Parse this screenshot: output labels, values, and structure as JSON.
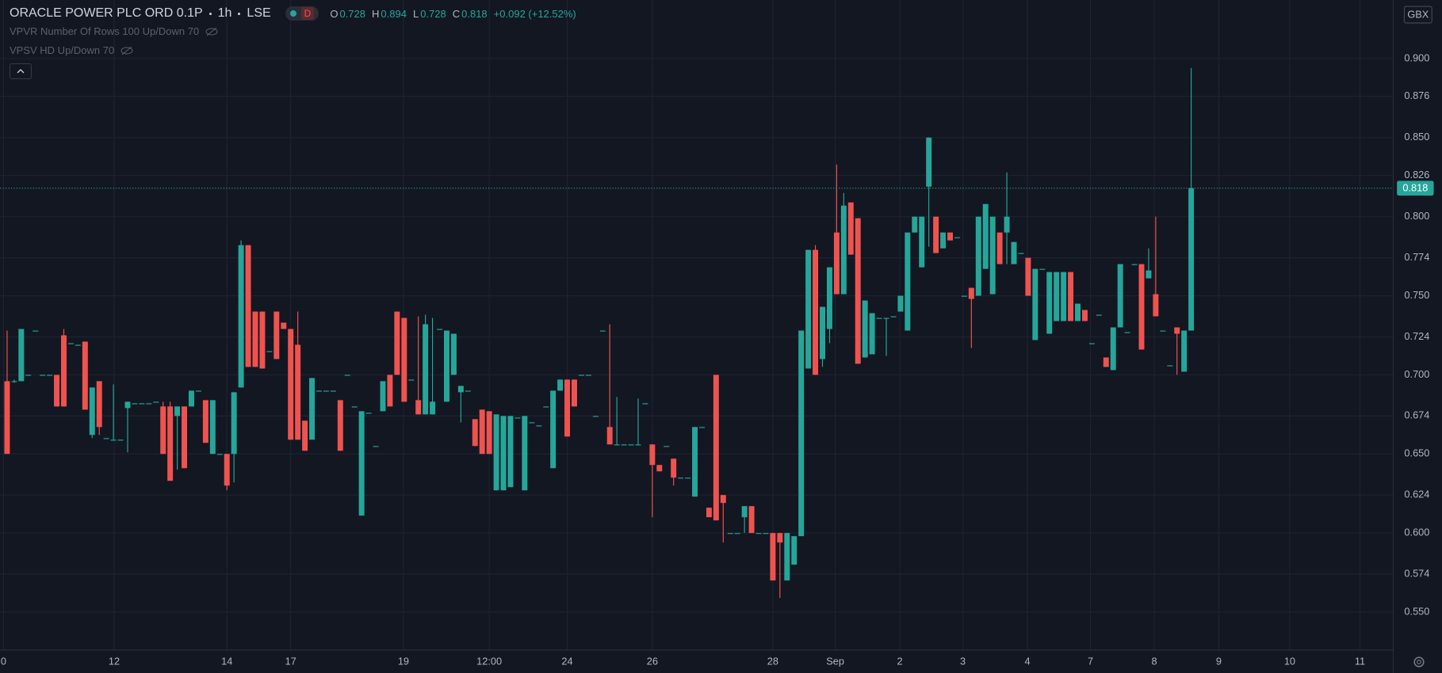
{
  "header": {
    "symbol": "ORACLE POWER PLC ORD 0.1P",
    "interval": "1h",
    "exchange": "LSE",
    "mode": "D",
    "o_label": "O",
    "h_label": "H",
    "l_label": "L",
    "c_label": "C",
    "change": "+0.092 (+12.52%)"
  },
  "indicators": [
    "VPVR Number Of Rows 100 Up/Down 70",
    "VPSV HD Up/Down 70"
  ],
  "currency": "GBX",
  "chart_data": {
    "type": "candlestick",
    "up_color": "#26a69a",
    "down_color": "#ef5350",
    "grid": true,
    "ylim": [
      0.526,
      0.937
    ],
    "yticks": [
      {
        "value": 0.55,
        "label": "0.550"
      },
      0.574,
      {
        "value": 0.6,
        "label": "0.600"
      },
      0.624,
      {
        "value": 0.65,
        "label": "0.650"
      },
      0.674,
      {
        "value": 0.7,
        "label": "0.700"
      },
      0.724,
      {
        "value": 0.75,
        "label": "0.750"
      },
      0.774,
      {
        "value": 0.8,
        "label": "0.800"
      },
      0.826,
      {
        "value": 0.85,
        "label": "0.850"
      },
      0.876,
      {
        "value": 0.9,
        "label": "0.900"
      }
    ],
    "xlim": [
      -1,
      195.5
    ],
    "xticks": [
      {
        "value": -0.5,
        "label": "0"
      },
      {
        "value": 15.1,
        "label": "12"
      },
      {
        "value": 31,
        "label": "14"
      },
      {
        "value": 40,
        "label": "17"
      },
      {
        "value": 55.9,
        "label": "19"
      },
      {
        "value": 68,
        "label": "12:00"
      },
      {
        "value": 79,
        "label": "24"
      },
      {
        "value": 91,
        "label": "26"
      },
      {
        "value": 108,
        "label": "28"
      },
      {
        "value": 116.8,
        "label": "Sep"
      },
      {
        "value": 125.9,
        "label": "2"
      },
      {
        "value": 134.8,
        "label": "3"
      },
      {
        "value": 143.9,
        "label": "4"
      },
      {
        "value": 152.8,
        "label": "7"
      },
      {
        "value": 161.8,
        "label": "8"
      },
      {
        "value": 170.9,
        "label": "9"
      },
      {
        "value": 180.9,
        "label": "10"
      },
      {
        "value": 190.8,
        "label": "11"
      }
    ],
    "ohlc": [
      [
        0.696,
        0.728,
        0.65,
        0.65
      ],
      [
        0.696,
        0.697,
        0.695,
        0.696
      ],
      [
        0.696,
        0.729,
        0.696,
        0.729
      ],
      [
        0.7,
        0.7,
        0.7,
        0.7
      ],
      [
        0.728,
        0.728,
        0.728,
        0.728
      ],
      [
        0.7,
        0.7,
        0.7,
        0.7
      ],
      [
        0.7,
        0.7,
        0.7,
        0.7
      ],
      [
        0.7,
        0.7,
        0.68,
        0.68
      ],
      [
        0.725,
        0.729,
        0.68,
        0.68
      ],
      [
        0.72,
        0.72,
        0.72,
        0.72
      ],
      [
        0.719,
        0.719,
        0.719,
        0.719
      ],
      [
        0.721,
        0.721,
        0.678,
        0.678
      ],
      [
        0.662,
        0.692,
        0.66,
        0.692
      ],
      [
        0.696,
        0.696,
        0.662,
        0.667
      ],
      [
        0.66,
        0.66,
        0.66,
        0.66
      ],
      [
        0.659,
        0.694,
        0.659,
        0.659
      ],
      [
        0.659,
        0.659,
        0.659,
        0.659
      ],
      [
        0.679,
        0.683,
        0.651,
        0.683
      ],
      [
        0.682,
        0.682,
        0.682,
        0.682
      ],
      [
        0.682,
        0.682,
        0.682,
        0.682
      ],
      [
        0.682,
        0.682,
        0.682,
        0.682
      ],
      [
        0.683,
        0.683,
        0.683,
        0.683
      ],
      [
        0.68,
        0.683,
        0.65,
        0.65
      ],
      [
        0.68,
        0.683,
        0.633,
        0.633
      ],
      [
        0.674,
        0.68,
        0.64,
        0.68
      ],
      [
        0.68,
        0.68,
        0.641,
        0.641
      ],
      [
        0.68,
        0.69,
        0.68,
        0.69
      ],
      [
        0.69,
        0.69,
        0.69,
        0.69
      ],
      [
        0.684,
        0.684,
        0.657,
        0.657
      ],
      [
        0.65,
        0.684,
        0.65,
        0.684
      ],
      [
        0.65,
        0.65,
        0.65,
        0.65
      ],
      [
        0.65,
        0.65,
        0.627,
        0.63
      ],
      [
        0.65,
        0.689,
        0.632,
        0.689
      ],
      [
        0.692,
        0.785,
        0.692,
        0.782
      ],
      [
        0.782,
        0.782,
        0.705,
        0.705
      ],
      [
        0.74,
        0.74,
        0.705,
        0.705
      ],
      [
        0.74,
        0.74,
        0.704,
        0.704
      ],
      [
        0.715,
        0.715,
        0.715,
        0.715
      ],
      [
        0.74,
        0.74,
        0.71,
        0.71
      ],
      [
        0.733,
        0.733,
        0.729,
        0.729
      ],
      [
        0.729,
        0.729,
        0.659,
        0.659
      ],
      [
        0.719,
        0.74,
        0.659,
        0.659
      ],
      [
        0.671,
        0.671,
        0.652,
        0.652
      ],
      [
        0.659,
        0.698,
        0.659,
        0.698
      ],
      [
        0.69,
        0.69,
        0.69,
        0.69
      ],
      [
        0.69,
        0.69,
        0.69,
        0.69
      ],
      [
        0.69,
        0.69,
        0.69,
        0.69
      ],
      [
        0.684,
        0.684,
        0.652,
        0.652
      ],
      [
        0.7,
        0.7,
        0.7,
        0.7
      ],
      [
        0.68,
        0.68,
        0.68,
        0.68
      ],
      [
        0.611,
        0.677,
        0.611,
        0.677
      ],
      [
        0.676,
        0.676,
        0.676,
        0.676
      ],
      [
        0.655,
        0.655,
        0.655,
        0.655
      ],
      [
        0.677,
        0.696,
        0.677,
        0.696
      ],
      [
        0.7,
        0.7,
        0.68,
        0.68
      ],
      [
        0.74,
        0.74,
        0.7,
        0.7
      ],
      [
        0.736,
        0.736,
        0.683,
        0.683
      ],
      [
        0.697,
        0.697,
        0.697,
        0.697
      ],
      [
        0.684,
        0.737,
        0.675,
        0.675
      ],
      [
        0.675,
        0.738,
        0.675,
        0.732
      ],
      [
        0.675,
        0.736,
        0.675,
        0.683
      ],
      [
        0.729,
        0.729,
        0.729,
        0.729
      ],
      [
        0.683,
        0.728,
        0.683,
        0.728
      ],
      [
        0.7,
        0.726,
        0.7,
        0.726
      ],
      [
        0.689,
        0.693,
        0.67,
        0.693
      ],
      [
        0.69,
        0.69,
        0.69,
        0.69
      ],
      [
        0.672,
        0.672,
        0.655,
        0.655
      ],
      [
        0.678,
        0.678,
        0.65,
        0.65
      ],
      [
        0.677,
        0.677,
        0.65,
        0.65
      ],
      [
        0.627,
        0.675,
        0.627,
        0.675
      ],
      [
        0.627,
        0.674,
        0.627,
        0.674
      ],
      [
        0.629,
        0.674,
        0.629,
        0.674
      ],
      [
        0.673,
        0.673,
        0.673,
        0.673
      ],
      [
        0.627,
        0.674,
        0.627,
        0.674
      ],
      [
        0.67,
        0.67,
        0.67,
        0.67
      ],
      [
        0.668,
        0.668,
        0.668,
        0.668
      ],
      [
        0.68,
        0.68,
        0.68,
        0.68
      ],
      [
        0.641,
        0.69,
        0.641,
        0.69
      ],
      [
        0.69,
        0.697,
        0.69,
        0.697
      ],
      [
        0.697,
        0.697,
        0.661,
        0.661
      ],
      [
        0.697,
        0.697,
        0.68,
        0.68
      ],
      [
        0.7,
        0.7,
        0.7,
        0.7
      ],
      [
        0.7,
        0.7,
        0.7,
        0.7
      ],
      [
        0.674,
        0.674,
        0.674,
        0.674
      ],
      [
        0.728,
        0.728,
        0.728,
        0.728
      ],
      [
        0.667,
        0.732,
        0.656,
        0.656
      ],
      [
        0.656,
        0.686,
        0.656,
        0.656
      ],
      [
        0.656,
        0.656,
        0.656,
        0.656
      ],
      [
        0.656,
        0.656,
        0.656,
        0.656
      ],
      [
        0.656,
        0.685,
        0.656,
        0.656
      ],
      [
        0.682,
        0.682,
        0.682,
        0.682
      ],
      [
        0.656,
        0.656,
        0.61,
        0.643
      ],
      [
        0.643,
        0.643,
        0.639,
        0.639
      ],
      [
        0.655,
        0.655,
        0.655,
        0.655
      ],
      [
        0.647,
        0.647,
        0.63,
        0.635
      ],
      [
        0.635,
        0.635,
        0.635,
        0.635
      ],
      [
        0.635,
        0.635,
        0.635,
        0.635
      ],
      [
        0.623,
        0.667,
        0.623,
        0.667
      ],
      [
        0.667,
        0.667,
        0.667,
        0.667
      ],
      [
        0.616,
        0.616,
        0.61,
        0.61
      ],
      [
        0.7,
        0.7,
        0.608,
        0.608
      ],
      [
        0.624,
        0.624,
        0.594,
        0.619
      ],
      [
        0.6,
        0.6,
        0.6,
        0.6
      ],
      [
        0.6,
        0.6,
        0.6,
        0.6
      ],
      [
        0.61,
        0.617,
        0.6,
        0.617
      ],
      [
        0.617,
        0.617,
        0.6,
        0.6
      ],
      [
        0.6,
        0.6,
        0.6,
        0.6
      ],
      [
        0.6,
        0.6,
        0.6,
        0.6
      ],
      [
        0.6,
        0.6,
        0.57,
        0.57
      ],
      [
        0.6,
        0.6,
        0.559,
        0.594
      ],
      [
        0.57,
        0.6,
        0.57,
        0.6
      ],
      [
        0.58,
        0.598,
        0.58,
        0.598
      ],
      [
        0.598,
        0.728,
        0.598,
        0.728
      ],
      [
        0.704,
        0.779,
        0.704,
        0.779
      ],
      [
        0.779,
        0.782,
        0.7,
        0.7
      ],
      [
        0.71,
        0.743,
        0.705,
        0.743
      ],
      [
        0.729,
        0.768,
        0.72,
        0.768
      ],
      [
        0.79,
        0.833,
        0.751,
        0.751
      ],
      [
        0.751,
        0.815,
        0.751,
        0.807
      ],
      [
        0.809,
        0.809,
        0.776,
        0.776
      ],
      [
        0.799,
        0.799,
        0.707,
        0.707
      ],
      [
        0.711,
        0.747,
        0.711,
        0.747
      ],
      [
        0.713,
        0.739,
        0.713,
        0.739
      ],
      [
        0.736,
        0.736,
        0.736,
        0.736
      ],
      [
        0.736,
        0.736,
        0.712,
        0.736
      ],
      [
        0.737,
        0.737,
        0.737,
        0.737
      ],
      [
        0.74,
        0.75,
        0.74,
        0.75
      ],
      [
        0.728,
        0.79,
        0.728,
        0.79
      ],
      [
        0.79,
        0.8,
        0.79,
        0.8
      ],
      [
        0.768,
        0.8,
        0.768,
        0.8
      ],
      [
        0.819,
        0.85,
        0.781,
        0.85
      ],
      [
        0.8,
        0.8,
        0.777,
        0.777
      ],
      [
        0.78,
        0.79,
        0.78,
        0.79
      ],
      [
        0.79,
        0.79,
        0.785,
        0.785
      ],
      [
        0.787,
        0.787,
        0.787,
        0.787
      ],
      [
        0.75,
        0.75,
        0.75,
        0.75
      ],
      [
        0.755,
        0.755,
        0.717,
        0.748
      ],
      [
        0.75,
        0.8,
        0.75,
        0.8
      ],
      [
        0.767,
        0.808,
        0.767,
        0.808
      ],
      [
        0.751,
        0.8,
        0.751,
        0.8
      ],
      [
        0.79,
        0.79,
        0.77,
        0.77
      ],
      [
        0.79,
        0.828,
        0.77,
        0.8
      ],
      [
        0.77,
        0.784,
        0.77,
        0.784
      ],
      [
        0.777,
        0.777,
        0.777,
        0.777
      ],
      [
        0.774,
        0.774,
        0.75,
        0.75
      ],
      [
        0.722,
        0.767,
        0.722,
        0.767
      ],
      [
        0.767,
        0.767,
        0.767,
        0.767
      ],
      [
        0.726,
        0.765,
        0.726,
        0.765
      ],
      [
        0.734,
        0.765,
        0.734,
        0.765
      ],
      [
        0.734,
        0.765,
        0.734,
        0.765
      ],
      [
        0.765,
        0.765,
        0.734,
        0.734
      ],
      [
        0.734,
        0.745,
        0.734,
        0.745
      ],
      [
        0.741,
        0.741,
        0.734,
        0.734
      ],
      [
        0.72,
        0.72,
        0.72,
        0.72
      ],
      [
        0.738,
        0.738,
        0.738,
        0.738
      ],
      [
        0.711,
        0.711,
        0.705,
        0.705
      ],
      [
        0.703,
        0.73,
        0.703,
        0.73
      ],
      [
        0.73,
        0.77,
        0.73,
        0.77
      ],
      [
        0.727,
        0.727,
        0.727,
        0.727
      ],
      [
        0.77,
        0.77,
        0.77,
        0.77
      ],
      [
        0.77,
        0.77,
        0.716,
        0.716
      ],
      [
        0.761,
        0.78,
        0.761,
        0.766
      ],
      [
        0.751,
        0.8,
        0.737,
        0.737
      ],
      [
        0.728,
        0.728,
        0.728,
        0.728
      ],
      [
        0.706,
        0.706,
        0.706,
        0.706
      ],
      [
        0.73,
        0.73,
        0.7,
        0.726
      ],
      [
        0.702,
        0.728,
        0.702,
        0.728
      ],
      [
        0.728,
        0.894,
        0.728,
        0.818
      ]
    ]
  }
}
